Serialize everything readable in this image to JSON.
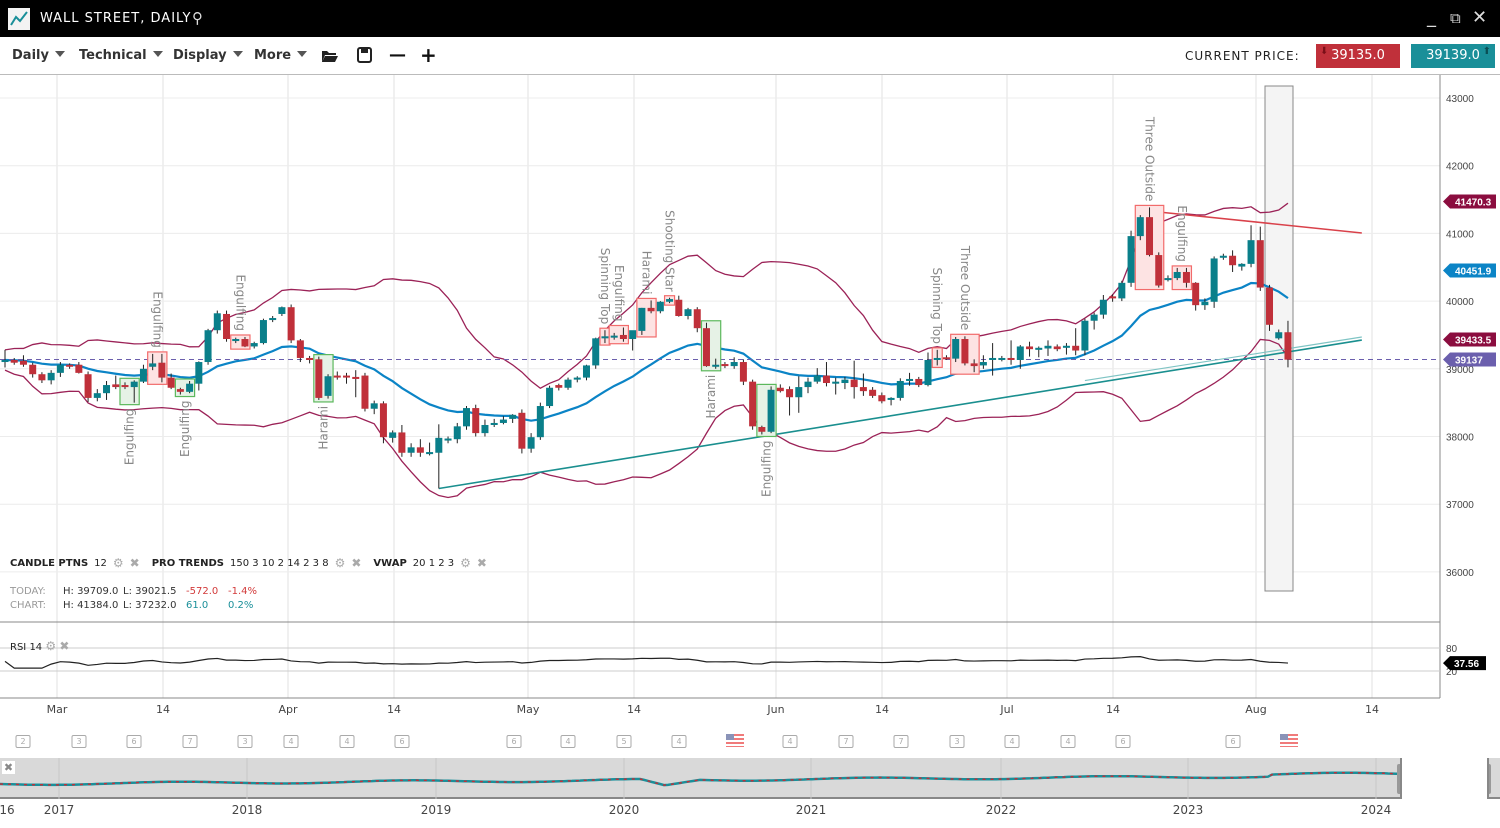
{
  "window": {
    "title": "WALL STREET, DAILY",
    "icons": [
      "chart-logo-icon",
      "search-icon",
      "minimize-icon",
      "popout-icon",
      "close-icon"
    ]
  },
  "toolbar": {
    "menus": [
      "Daily",
      "Technical",
      "Display",
      "More"
    ],
    "icons": [
      "folder-open-icon",
      "save-icon",
      "zoom-out-icon",
      "zoom-in-icon"
    ],
    "current_price_label": "CURRENT PRICE:",
    "sell_price": "39135.0",
    "buy_price": "39139.0",
    "sell_color": "#c0303a",
    "buy_color": "#1a8f99"
  },
  "indicators": [
    {
      "name": "CANDLE PTNS",
      "params": "12"
    },
    {
      "name": "PRO TRENDS",
      "params": "150 3 10 2 14 2 3 8"
    },
    {
      "name": "VWAP",
      "params": "20 1 2 3"
    }
  ],
  "stats": {
    "today": {
      "label": "TODAY:",
      "high": "H: 39709.0",
      "low": "L: 39021.5",
      "change": "-572.0",
      "pct": "-1.4%"
    },
    "chart": {
      "label": "CHART:",
      "high": "H: 41384.0",
      "low": "L: 37232.0",
      "change": "61.0",
      "pct": "0.2%"
    }
  },
  "rsi": {
    "label": "RSI",
    "period": "14",
    "value": "37.56",
    "ticks": [
      "80",
      "20"
    ]
  },
  "colors": {
    "up": "#0a7f8a",
    "down": "#c0303a",
    "band": "#9b2257",
    "ma": "#0b84c6",
    "trend_up": "#1a8f8f",
    "trend_down": "#d9414a",
    "last": "#6b5fad"
  },
  "chart_data": {
    "type": "candlestick",
    "y_ticks": [
      43000,
      42000,
      41000,
      40000,
      39000,
      38000,
      37000,
      36000
    ],
    "x_labels": [
      "Mar",
      "14",
      "Apr",
      "14",
      "May",
      "14",
      "Jun",
      "14",
      "Jul",
      "14",
      "Aug",
      "14"
    ],
    "price_tags": [
      {
        "value": "41470.3",
        "color": "#8b0d3f"
      },
      {
        "value": "40451.9",
        "color": "#0b84c6"
      },
      {
        "value": "39433.5",
        "color": "#8b0d3f"
      },
      {
        "value": "39137",
        "color": "#6b5fad"
      }
    ],
    "last_price": 39137,
    "candles": [
      [
        39100,
        39280,
        39020,
        39130
      ],
      [
        39130,
        39160,
        39060,
        39090
      ],
      [
        39120,
        39200,
        39030,
        39060
      ],
      [
        39060,
        39090,
        38870,
        38920
      ],
      [
        38920,
        38950,
        38790,
        38830
      ],
      [
        38830,
        38980,
        38770,
        38940
      ],
      [
        38940,
        39100,
        38880,
        39060
      ],
      [
        39060,
        39080,
        39000,
        39030
      ],
      [
        39060,
        39100,
        38930,
        38940
      ],
      [
        38920,
        38960,
        38510,
        38570
      ],
      [
        38570,
        38700,
        38520,
        38640
      ],
      [
        38640,
        38820,
        38540,
        38760
      ],
      [
        38770,
        38900,
        38700,
        38730
      ],
      [
        38760,
        38800,
        38700,
        38730
      ],
      [
        38730,
        38830,
        38500,
        38810
      ],
      [
        38810,
        39060,
        38790,
        39000
      ],
      [
        39030,
        39220,
        38980,
        39080
      ],
      [
        39090,
        39220,
        38800,
        38870
      ],
      [
        38870,
        38930,
        38700,
        38720
      ],
      [
        38700,
        38720,
        38620,
        38660
      ],
      [
        38660,
        38820,
        38640,
        38780
      ],
      [
        38780,
        39110,
        38680,
        39100
      ],
      [
        39100,
        39590,
        39060,
        39570
      ],
      [
        39570,
        39860,
        39520,
        39820
      ],
      [
        39810,
        39860,
        39400,
        39440
      ],
      [
        39410,
        39460,
        39380,
        39440
      ],
      [
        39440,
        39470,
        39320,
        39330
      ],
      [
        39330,
        39400,
        39300,
        39380
      ],
      [
        39380,
        39740,
        39360,
        39720
      ],
      [
        39720,
        39780,
        39690,
        39750
      ],
      [
        39810,
        39920,
        39780,
        39910
      ],
      [
        39910,
        39950,
        39380,
        39420
      ],
      [
        39420,
        39440,
        39100,
        39160
      ],
      [
        39160,
        39190,
        39080,
        39130
      ],
      [
        39140,
        39180,
        38540,
        38570
      ],
      [
        38600,
        38920,
        38560,
        38890
      ],
      [
        38900,
        38960,
        38840,
        38880
      ],
      [
        38900,
        38940,
        38780,
        38880
      ],
      [
        38880,
        38980,
        38580,
        38850
      ],
      [
        38900,
        38940,
        38370,
        38410
      ],
      [
        38410,
        38530,
        38330,
        38490
      ],
      [
        38490,
        38520,
        37900,
        37990
      ],
      [
        37980,
        38090,
        37910,
        38060
      ],
      [
        38060,
        38170,
        37700,
        37760
      ],
      [
        37760,
        37900,
        37700,
        37840
      ],
      [
        37840,
        37960,
        37700,
        37760
      ],
      [
        37740,
        37910,
        37720,
        37770
      ],
      [
        37760,
        38180,
        37232,
        37980
      ],
      [
        37940,
        38000,
        37900,
        37970
      ],
      [
        37960,
        38200,
        37900,
        38150
      ],
      [
        38150,
        38450,
        38100,
        38420
      ],
      [
        38420,
        38470,
        38000,
        38050
      ],
      [
        38050,
        38250,
        38000,
        38170
      ],
      [
        38170,
        38260,
        38140,
        38200
      ],
      [
        38200,
        38300,
        38180,
        38250
      ],
      [
        38260,
        38330,
        38200,
        38320
      ],
      [
        38350,
        38400,
        37750,
        37820
      ],
      [
        37820,
        38050,
        37760,
        37990
      ],
      [
        37990,
        38500,
        37950,
        38450
      ],
      [
        38450,
        38750,
        38420,
        38720
      ],
      [
        38760,
        38780,
        38680,
        38720
      ],
      [
        38720,
        38870,
        38690,
        38840
      ],
      [
        38840,
        38890,
        38800,
        38870
      ],
      [
        38870,
        39060,
        38830,
        39050
      ],
      [
        39050,
        39460,
        39000,
        39450
      ],
      [
        39450,
        39570,
        39380,
        39480
      ],
      [
        39460,
        39530,
        39430,
        39490
      ],
      [
        39500,
        39610,
        39400,
        39440
      ],
      [
        39440,
        39560,
        39270,
        39570
      ],
      [
        39560,
        39900,
        39500,
        39900
      ],
      [
        39900,
        40010,
        39820,
        39850
      ],
      [
        39850,
        40000,
        39820,
        39990
      ],
      [
        39990,
        40050,
        39970,
        40030
      ],
      [
        40020,
        40080,
        39770,
        39780
      ],
      [
        39780,
        39900,
        39730,
        39880
      ],
      [
        39880,
        39910,
        39540,
        39600
      ],
      [
        39600,
        39680,
        39030,
        39040
      ],
      [
        39030,
        39150,
        39000,
        39060
      ],
      [
        39070,
        39100,
        39010,
        39040
      ],
      [
        39040,
        39170,
        39000,
        39100
      ],
      [
        39100,
        39140,
        38760,
        38810
      ],
      [
        38810,
        38840,
        38100,
        38150
      ],
      [
        38140,
        38160,
        38030,
        38070
      ],
      [
        38070,
        38740,
        38050,
        38690
      ],
      [
        38720,
        38770,
        38650,
        38670
      ],
      [
        38700,
        38740,
        38310,
        38580
      ],
      [
        38580,
        38890,
        38350,
        38730
      ],
      [
        38730,
        38870,
        38640,
        38810
      ],
      [
        38810,
        39010,
        38780,
        38900
      ],
      [
        38900,
        39100,
        38740,
        38790
      ],
      [
        38780,
        38870,
        38620,
        38810
      ],
      [
        38790,
        38880,
        38700,
        38840
      ],
      [
        38840,
        39120,
        38560,
        38730
      ],
      [
        38730,
        38930,
        38600,
        38670
      ],
      [
        38690,
        38730,
        38570,
        38600
      ],
      [
        38610,
        38650,
        38490,
        38520
      ],
      [
        38540,
        38580,
        38460,
        38570
      ],
      [
        38570,
        38860,
        38530,
        38820
      ],
      [
        38820,
        38940,
        38750,
        38850
      ],
      [
        38850,
        38880,
        38730,
        38760
      ],
      [
        38760,
        39240,
        38740,
        39130
      ],
      [
        39130,
        39280,
        39050,
        39160
      ],
      [
        39170,
        39200,
        39130,
        39150
      ],
      [
        39150,
        39470,
        39100,
        39440
      ],
      [
        39440,
        39480,
        39050,
        39080
      ],
      [
        39080,
        39140,
        38950,
        39040
      ],
      [
        39050,
        39200,
        39000,
        39100
      ],
      [
        39130,
        39380,
        38900,
        39160
      ],
      [
        39140,
        39190,
        39110,
        39160
      ],
      [
        39160,
        39420,
        39060,
        39130
      ],
      [
        39130,
        39350,
        39000,
        39330
      ],
      [
        39330,
        39400,
        39180,
        39290
      ],
      [
        39280,
        39330,
        39170,
        39310
      ],
      [
        39300,
        39420,
        39190,
        39340
      ],
      [
        39330,
        39360,
        39260,
        39290
      ],
      [
        39310,
        39380,
        39210,
        39340
      ],
      [
        39340,
        39600,
        39200,
        39270
      ],
      [
        39270,
        39740,
        39200,
        39710
      ],
      [
        39710,
        39830,
        39580,
        39800
      ],
      [
        39800,
        40090,
        39740,
        40020
      ],
      [
        40070,
        40100,
        39990,
        40040
      ],
      [
        40040,
        40300,
        40000,
        40270
      ],
      [
        40270,
        41040,
        40210,
        40960
      ],
      [
        40960,
        41270,
        40900,
        41240
      ],
      [
        41240,
        41384,
        40660,
        40680
      ],
      [
        40680,
        40720,
        40200,
        40230
      ],
      [
        40310,
        40380,
        40290,
        40340
      ],
      [
        40340,
        40490,
        40310,
        40430
      ],
      [
        40430,
        40490,
        40200,
        40270
      ],
      [
        40270,
        40280,
        39860,
        39940
      ],
      [
        39940,
        40040,
        39870,
        39990
      ],
      [
        39990,
        40660,
        39900,
        40630
      ],
      [
        40640,
        40700,
        40610,
        40670
      ],
      [
        40670,
        40750,
        40430,
        40530
      ],
      [
        40510,
        40560,
        40450,
        40550
      ],
      [
        40550,
        41120,
        40500,
        40900
      ],
      [
        40900,
        41100,
        40150,
        40200
      ],
      [
        40200,
        40240,
        39560,
        39650
      ],
      [
        39450,
        39580,
        39430,
        39540
      ],
      [
        39540,
        39709,
        39021.5,
        39135
      ]
    ],
    "patterns": [
      {
        "label": "Engulfing",
        "from": 13,
        "to": 14,
        "type": "bullish"
      },
      {
        "label": "Engulfing",
        "from": 16,
        "to": 17,
        "type": "bearish"
      },
      {
        "label": "Engulfing",
        "from": 19,
        "to": 20,
        "type": "bullish"
      },
      {
        "label": "Engulfing",
        "from": 25,
        "to": 26,
        "type": "bearish"
      },
      {
        "label": "Harami",
        "from": 34,
        "to": 35,
        "type": "bullish"
      },
      {
        "label": "Spinning Top",
        "from": 65,
        "to": 65,
        "type": "bearish"
      },
      {
        "label": "Engulfing",
        "from": 66,
        "to": 67,
        "type": "bearish"
      },
      {
        "label": "Harami",
        "from": 69,
        "to": 70,
        "type": "bearish"
      },
      {
        "label": "Shooting Star",
        "from": 72,
        "to": 72,
        "type": "bearish"
      },
      {
        "label": "Harami",
        "from": 76,
        "to": 77,
        "type": "bullish"
      },
      {
        "label": "Engulfing",
        "from": 82,
        "to": 83,
        "type": "bullish"
      },
      {
        "label": "Spinning Top",
        "from": 101,
        "to": 101,
        "type": "bearish"
      },
      {
        "label": "Three Outside",
        "from": 103,
        "to": 105,
        "type": "bearish"
      },
      {
        "label": "Three Outside",
        "from": 123,
        "to": 125,
        "type": "bearish"
      },
      {
        "label": "Engulfing",
        "from": 127,
        "to": 128,
        "type": "bearish"
      }
    ],
    "trendlines": [
      {
        "from": {
          "index": 47,
          "price": 37232
        },
        "to": {
          "index": 147,
          "price": 39425
        },
        "color": "#1a8f8f"
      },
      {
        "from": {
          "index": 125,
          "price": 41316
        },
        "to": {
          "index": 147,
          "price": 41006
        },
        "color": "#d9414a"
      }
    ]
  },
  "calendar_events": [
    "2",
    "3",
    "6",
    "7",
    "3",
    "4",
    "4",
    "6",
    "6",
    "4",
    "5",
    "4",
    "flag",
    "4",
    "7",
    "7",
    "3",
    "4",
    "4",
    "6",
    "6",
    "flag"
  ],
  "navigator": {
    "years": [
      "16",
      "2017",
      "2018",
      "2019",
      "2020",
      "2021",
      "2022",
      "2023",
      "2024"
    ]
  }
}
